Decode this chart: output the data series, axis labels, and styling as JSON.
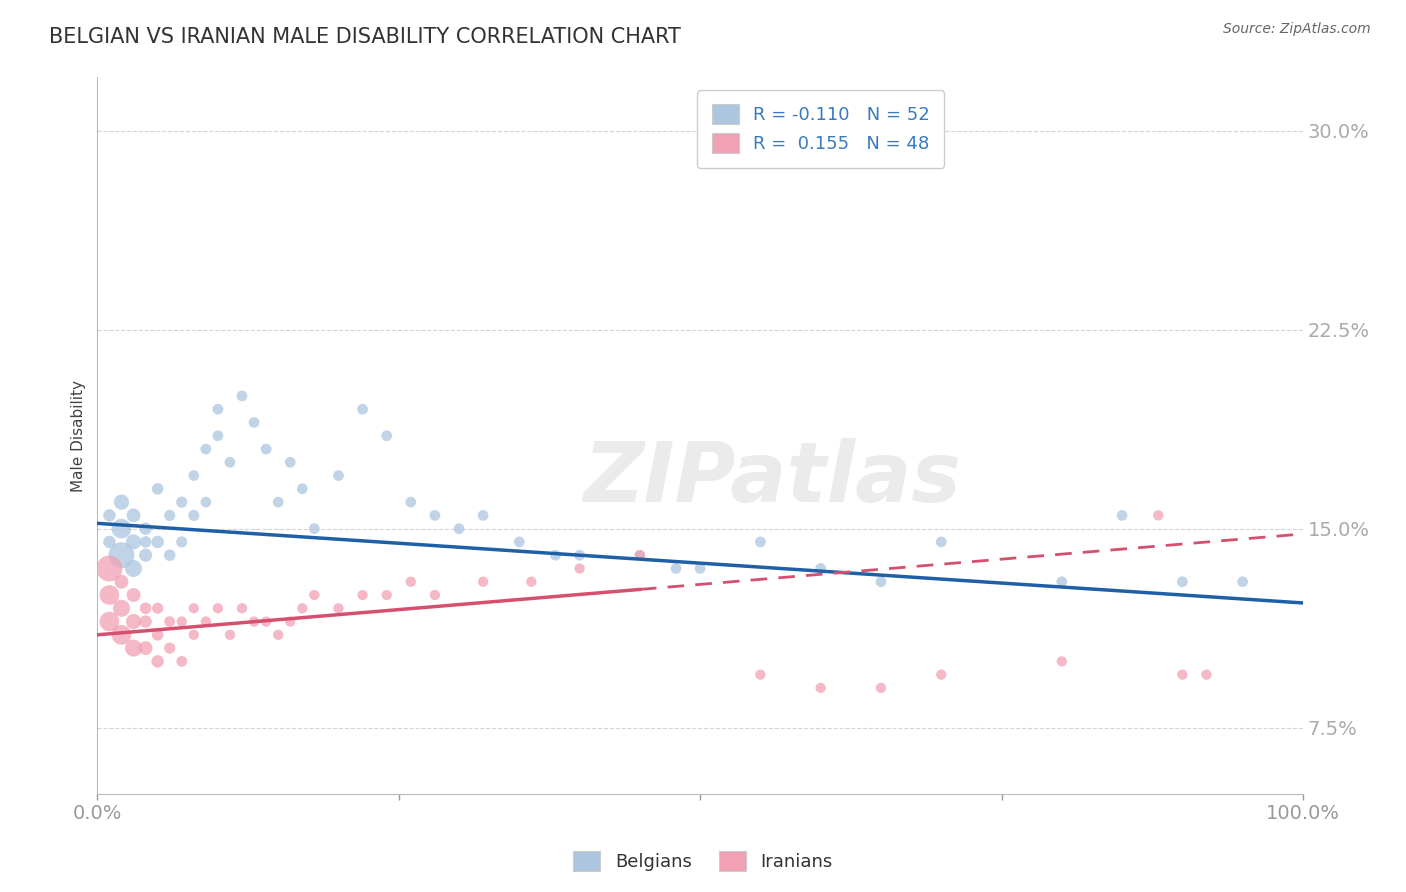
{
  "title": "BELGIAN VS IRANIAN MALE DISABILITY CORRELATION CHART",
  "source": "Source: ZipAtlas.com",
  "ylabel": "Male Disability",
  "xlim": [
    0,
    100
  ],
  "ylim": [
    5,
    32
  ],
  "yticks": [
    7.5,
    15.0,
    22.5,
    30.0
  ],
  "xticks": [
    0,
    25,
    50,
    75,
    100
  ],
  "xtick_labels": [
    "0.0%",
    "",
    "",
    "",
    "100.0%"
  ],
  "ytick_labels": [
    "7.5%",
    "15.0%",
    "22.5%",
    "30.0%"
  ],
  "belgian_color": "#adc6e0",
  "iranian_color": "#f2a0b4",
  "belgian_line_color": "#1f5fa6",
  "iranian_line_color": "#d4506e",
  "belgian_R": -0.11,
  "belgian_N": 52,
  "iranian_R": 0.155,
  "iranian_N": 48,
  "legend_label_belgian": "Belgians",
  "legend_label_iranian": "Iranians",
  "watermark": "ZIPatlas",
  "background_color": "#ffffff",
  "grid_color": "#d0d0d0",
  "belgian_line_x0": 0,
  "belgian_line_y0": 15.2,
  "belgian_line_x1": 100,
  "belgian_line_y1": 12.2,
  "iranian_line_x0": 0,
  "iranian_line_y0": 11.0,
  "iranian_line_x1": 100,
  "iranian_line_y1": 14.8,
  "iranian_solid_end_x": 45,
  "belgians_x": [
    1,
    1,
    2,
    2,
    2,
    3,
    3,
    3,
    4,
    4,
    4,
    5,
    5,
    6,
    6,
    7,
    7,
    8,
    8,
    9,
    9,
    10,
    10,
    11,
    12,
    13,
    14,
    15,
    16,
    17,
    18,
    20,
    22,
    24,
    26,
    28,
    30,
    32,
    35,
    38,
    40,
    45,
    48,
    50,
    55,
    60,
    65,
    70,
    80,
    85,
    90,
    95
  ],
  "belgians_y": [
    14.5,
    15.5,
    14.0,
    15.0,
    16.0,
    13.5,
    14.5,
    15.5,
    14.0,
    15.0,
    14.5,
    14.5,
    16.5,
    14.0,
    15.5,
    16.0,
    14.5,
    15.5,
    17.0,
    16.0,
    18.0,
    18.5,
    19.5,
    17.5,
    20.0,
    19.0,
    18.0,
    16.0,
    17.5,
    16.5,
    15.0,
    17.0,
    19.5,
    18.5,
    16.0,
    15.5,
    15.0,
    15.5,
    14.5,
    14.0,
    14.0,
    14.0,
    13.5,
    13.5,
    14.5,
    13.5,
    13.0,
    14.5,
    13.0,
    15.5,
    13.0,
    13.0
  ],
  "belgians_size": [
    80,
    80,
    350,
    200,
    120,
    150,
    120,
    100,
    90,
    80,
    70,
    80,
    70,
    70,
    65,
    65,
    65,
    65,
    60,
    60,
    60,
    60,
    60,
    60,
    60,
    60,
    60,
    60,
    60,
    60,
    60,
    60,
    60,
    60,
    60,
    60,
    60,
    60,
    60,
    60,
    60,
    60,
    60,
    60,
    60,
    60,
    60,
    60,
    60,
    60,
    60,
    60
  ],
  "iranians_x": [
    1,
    1,
    1,
    2,
    2,
    2,
    3,
    3,
    3,
    4,
    4,
    4,
    5,
    5,
    5,
    6,
    6,
    7,
    7,
    8,
    8,
    9,
    10,
    11,
    12,
    13,
    14,
    15,
    16,
    17,
    18,
    20,
    22,
    24,
    26,
    28,
    32,
    36,
    40,
    45,
    55,
    60,
    65,
    70,
    80,
    88,
    90,
    92
  ],
  "iranians_y": [
    11.5,
    12.5,
    13.5,
    11.0,
    12.0,
    13.0,
    10.5,
    11.5,
    12.5,
    10.5,
    11.5,
    12.0,
    10.0,
    11.0,
    12.0,
    10.5,
    11.5,
    10.0,
    11.5,
    11.0,
    12.0,
    11.5,
    12.0,
    11.0,
    12.0,
    11.5,
    11.5,
    11.0,
    11.5,
    12.0,
    12.5,
    12.0,
    12.5,
    12.5,
    13.0,
    12.5,
    13.0,
    13.0,
    13.5,
    14.0,
    9.5,
    9.0,
    9.0,
    9.5,
    10.0,
    15.5,
    9.5,
    9.5
  ],
  "iranians_size": [
    200,
    200,
    350,
    200,
    150,
    100,
    150,
    120,
    100,
    100,
    80,
    70,
    80,
    70,
    65,
    65,
    60,
    60,
    55,
    55,
    55,
    55,
    55,
    55,
    55,
    55,
    55,
    55,
    55,
    55,
    55,
    55,
    55,
    55,
    55,
    55,
    55,
    55,
    55,
    55,
    55,
    55,
    55,
    55,
    55,
    55,
    55,
    55
  ]
}
